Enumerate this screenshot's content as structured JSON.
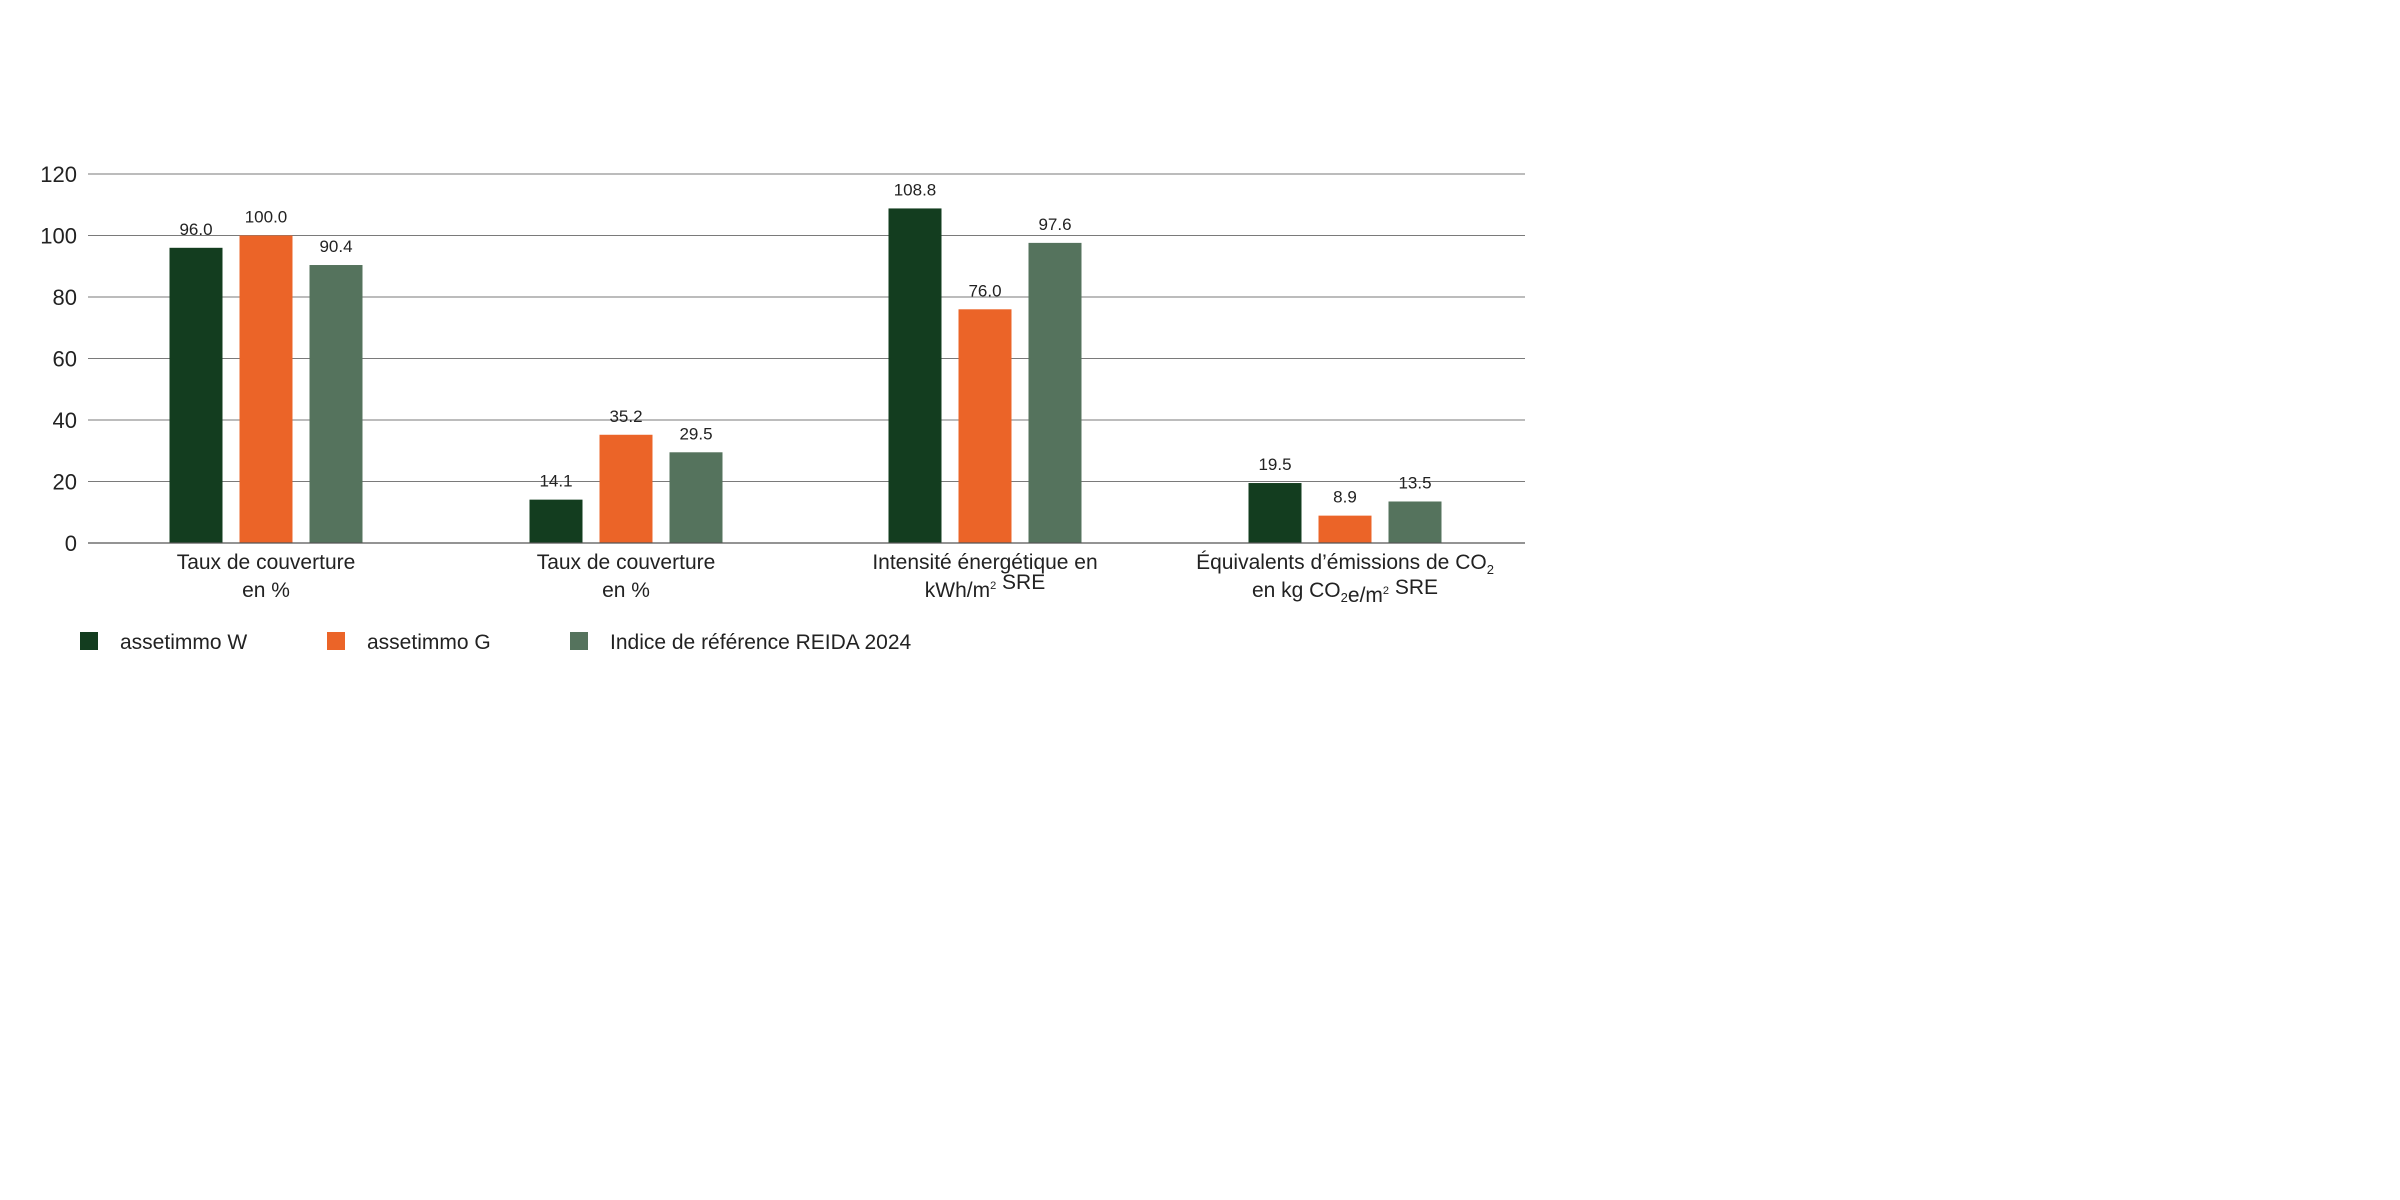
{
  "chart_data": {
    "type": "bar",
    "categories": [
      {
        "lines": [
          [
            {
              "t": "Taux de couverture"
            }
          ],
          [
            {
              "t": "en %"
            }
          ]
        ]
      },
      {
        "lines": [
          [
            {
              "t": "Taux de couverture"
            }
          ],
          [
            {
              "t": "en %"
            }
          ]
        ]
      },
      {
        "lines": [
          [
            {
              "t": "Intensité énergétique en"
            }
          ],
          [
            {
              "t": "kWh/m"
            },
            {
              "t": "2",
              "sup": true
            },
            {
              "t": " SRE"
            }
          ]
        ]
      },
      {
        "lines": [
          [
            {
              "t": "Équivalents d’émissions de CO"
            },
            {
              "t": "2",
              "sub": true
            }
          ],
          [
            {
              "t": "en kg CO"
            },
            {
              "t": "2",
              "sub": true
            },
            {
              "t": "e/m"
            },
            {
              "t": "2",
              "sup": true
            },
            {
              "t": " SRE"
            }
          ]
        ]
      }
    ],
    "series": [
      {
        "name": "assetimmo W",
        "color": "#133d1f",
        "values": [
          96.0,
          14.1,
          108.8,
          19.5
        ],
        "labels": [
          "96.0",
          "14.1",
          "108.8",
          "19.5"
        ]
      },
      {
        "name": "assetimmo G",
        "color": "#eb6428",
        "values": [
          100.0,
          35.2,
          76.0,
          8.9
        ],
        "labels": [
          "100.0",
          "35.2",
          "76.0",
          "8.9"
        ]
      },
      {
        "name": "Indice de référence REIDA 2024",
        "color": "#55735d",
        "values": [
          90.4,
          29.5,
          97.6,
          13.5
        ],
        "labels": [
          "90.4",
          "29.5",
          "97.6",
          "13.5"
        ]
      }
    ],
    "ylim": [
      0,
      120
    ],
    "yticks": [
      "0",
      "20",
      "40",
      "60",
      "80",
      "100",
      "120"
    ],
    "grid": true,
    "legend": "bottom-left"
  }
}
